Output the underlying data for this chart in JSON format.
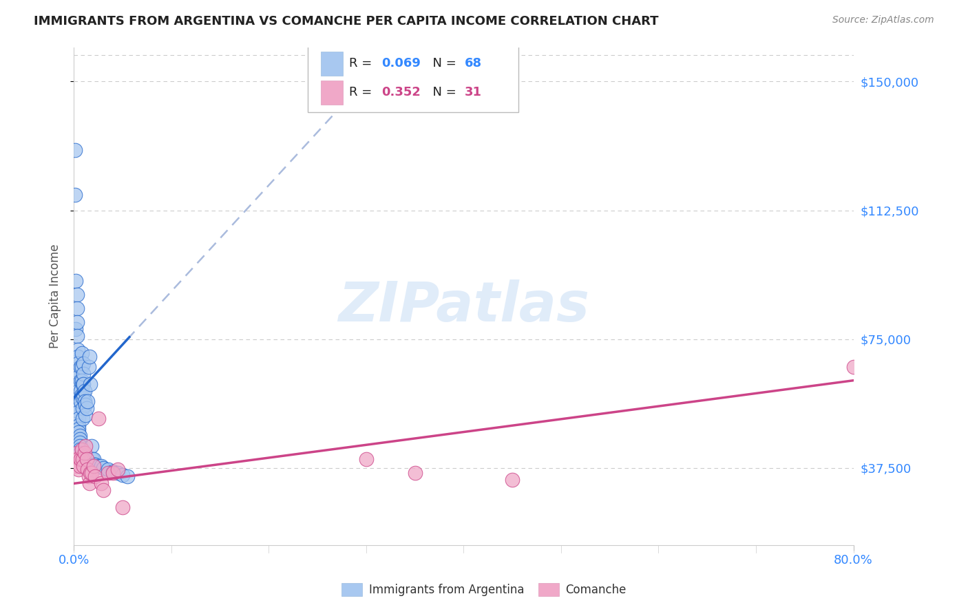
{
  "title": "IMMIGRANTS FROM ARGENTINA VS COMANCHE PER CAPITA INCOME CORRELATION CHART",
  "source": "Source: ZipAtlas.com",
  "ylabel": "Per Capita Income",
  "xlim": [
    0.0,
    0.8
  ],
  "ylim": [
    15000,
    160000
  ],
  "yticks": [
    37500,
    75000,
    112500,
    150000
  ],
  "ytick_labels": [
    "$37,500",
    "$75,000",
    "$112,500",
    "$150,000"
  ],
  "legend1_r": "0.069",
  "legend1_n": "68",
  "legend2_r": "0.352",
  "legend2_n": "31",
  "blue_color": "#A8C8F0",
  "pink_color": "#F0A8C8",
  "blue_line_color": "#2266CC",
  "pink_line_color": "#CC4488",
  "blue_dash_color": "#AABBDD",
  "tick_color": "#3388FF",
  "watermark": "ZIPatlas",
  "arg_x": [
    0.001,
    0.001,
    0.002,
    0.002,
    0.003,
    0.003,
    0.003,
    0.003,
    0.004,
    0.004,
    0.004,
    0.004,
    0.004,
    0.004,
    0.005,
    0.005,
    0.005,
    0.005,
    0.005,
    0.005,
    0.005,
    0.005,
    0.005,
    0.006,
    0.006,
    0.006,
    0.006,
    0.006,
    0.006,
    0.007,
    0.007,
    0.007,
    0.007,
    0.007,
    0.008,
    0.008,
    0.008,
    0.008,
    0.009,
    0.009,
    0.009,
    0.009,
    0.01,
    0.01,
    0.01,
    0.01,
    0.011,
    0.011,
    0.012,
    0.012,
    0.013,
    0.014,
    0.015,
    0.016,
    0.017,
    0.018,
    0.019,
    0.02,
    0.021,
    0.022,
    0.025,
    0.028,
    0.03,
    0.035,
    0.04,
    0.045,
    0.05,
    0.055
  ],
  "arg_y": [
    130000,
    117000,
    92000,
    78000,
    88000,
    84000,
    80000,
    76000,
    72000,
    70000,
    68000,
    66000,
    64000,
    62000,
    60000,
    58000,
    56000,
    55000,
    54000,
    52000,
    50000,
    49000,
    48000,
    47000,
    46000,
    45000,
    44000,
    43000,
    42000,
    41000,
    67000,
    63000,
    60000,
    57000,
    71000,
    67000,
    63000,
    59000,
    62000,
    58000,
    55000,
    52000,
    68000,
    65000,
    62000,
    59000,
    60000,
    57000,
    56000,
    53000,
    55000,
    57000,
    67000,
    70000,
    62000,
    44000,
    40000,
    40000,
    38500,
    38500,
    38000,
    38000,
    37500,
    37000,
    36500,
    36000,
    35500,
    35000
  ],
  "com_x": [
    0.001,
    0.002,
    0.003,
    0.004,
    0.005,
    0.006,
    0.007,
    0.008,
    0.009,
    0.01,
    0.011,
    0.012,
    0.013,
    0.014,
    0.015,
    0.016,
    0.017,
    0.018,
    0.02,
    0.022,
    0.025,
    0.028,
    0.03,
    0.035,
    0.04,
    0.045,
    0.05,
    0.3,
    0.35,
    0.45,
    0.8
  ],
  "com_y": [
    40000,
    38000,
    42000,
    40000,
    37000,
    38000,
    40000,
    43000,
    40000,
    38000,
    42000,
    44000,
    40000,
    37000,
    35000,
    33000,
    36000,
    36000,
    38000,
    35000,
    52000,
    33000,
    31000,
    36000,
    36000,
    37000,
    26000,
    40000,
    36000,
    34000,
    67000
  ]
}
